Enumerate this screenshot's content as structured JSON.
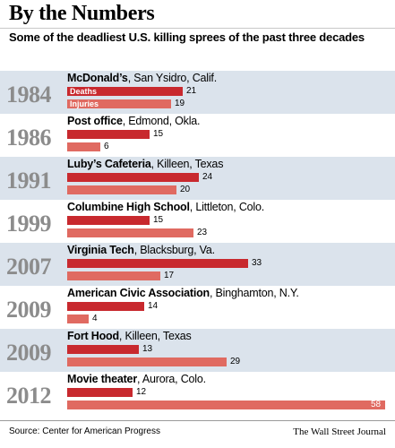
{
  "title": "By the Numbers",
  "subtitle": "Some of the deadliest U.S. killing sprees of the past three decades",
  "source": "Source: Center for American Progress",
  "credit": "The Wall Street Journal",
  "colors": {
    "deaths": "#c8292e",
    "injuries": "#e06a61",
    "shade": "#dbe3ec"
  },
  "chart_data": {
    "type": "bar",
    "title": "By the Numbers",
    "subtitle": "Some of the deadliest U.S. killing sprees of the past three decades",
    "series": [
      {
        "name": "Deaths"
      },
      {
        "name": "Injuries"
      }
    ],
    "events": [
      {
        "year": "1984",
        "place": "McDonald’s",
        "location": ", San Ysidro, Calif.",
        "deaths": 21,
        "injuries": 19
      },
      {
        "year": "1986",
        "place": "Post office",
        "location": ", Edmond, Okla.",
        "deaths": 15,
        "injuries": 6
      },
      {
        "year": "1991",
        "place": "Luby’s Cafeteria",
        "location": ", Killeen, Texas",
        "deaths": 24,
        "injuries": 20
      },
      {
        "year": "1999",
        "place": "Columbine High School",
        "location": ", Littleton, Colo.",
        "deaths": 15,
        "injuries": 23
      },
      {
        "year": "2007",
        "place": "Virginia Tech",
        "location": ", Blacksburg, Va.",
        "deaths": 33,
        "injuries": 17
      },
      {
        "year": "2009",
        "place": "American Civic Association",
        "location": ", Binghamton, N.Y.",
        "deaths": 14,
        "injuries": 4
      },
      {
        "year": "2009",
        "place": "Fort Hood",
        "location": ", Killeen, Texas",
        "deaths": 13,
        "injuries": 29
      },
      {
        "year": "2012",
        "place": "Movie theater",
        "location": ", Aurora, Colo.",
        "deaths": 12,
        "injuries": 58
      }
    ],
    "xlim": [
      0,
      58
    ]
  }
}
